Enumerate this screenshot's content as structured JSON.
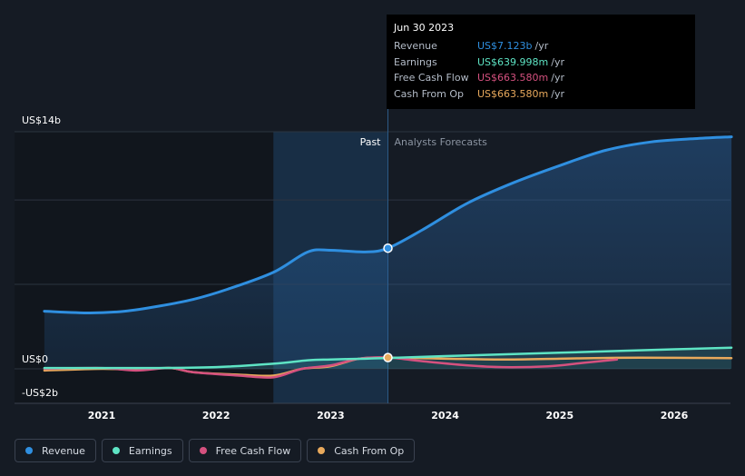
{
  "tooltip": {
    "date": "Jun 30 2023",
    "rows": [
      {
        "label": "Revenue",
        "value": "US$7.123b",
        "unit": "/yr",
        "color": "#2f8fe0"
      },
      {
        "label": "Earnings",
        "value": "US$639.998m",
        "unit": "/yr",
        "color": "#5ee4c4"
      },
      {
        "label": "Free Cash Flow",
        "value": "US$663.580m",
        "unit": "/yr",
        "color": "#d5517f"
      },
      {
        "label": "Cash From Op",
        "value": "US$663.580m",
        "unit": "/yr",
        "color": "#e8a95c"
      }
    ]
  },
  "chart_data": {
    "type": "line",
    "y_tick_labels": [
      "US$14b",
      "US$0",
      "-US$2b"
    ],
    "ylim": [
      -2,
      14
    ],
    "xlim": [
      2020.5,
      2026.5
    ],
    "x_tick_labels": [
      "2021",
      "2022",
      "2023",
      "2024",
      "2025",
      "2026"
    ],
    "past_label": "Past",
    "forecast_label": "Analysts Forecasts",
    "past_shade_start": 2022.5,
    "forecast_start": 2023.5,
    "series": [
      {
        "name": "Revenue",
        "color": "#2f8fe0",
        "x": [
          2020.5,
          2020.9,
          2021.2,
          2021.5,
          2021.8,
          2022.1,
          2022.5,
          2022.8,
          2023.0,
          2023.3,
          2023.5,
          2023.8,
          2024.2,
          2024.6,
          2025.0,
          2025.4,
          2025.8,
          2026.2,
          2026.5
        ],
        "y": [
          3.4,
          3.3,
          3.4,
          3.7,
          4.1,
          4.7,
          5.7,
          6.9,
          7.0,
          6.9,
          7.123,
          8.2,
          9.8,
          11.0,
          12.0,
          12.9,
          13.4,
          13.6,
          13.7
        ]
      },
      {
        "name": "Earnings",
        "color": "#5ee4c4",
        "x": [
          2020.5,
          2021.0,
          2021.5,
          2022.0,
          2022.5,
          2022.8,
          2023.0,
          2023.3,
          2023.5,
          2024.0,
          2024.5,
          2025.0,
          2025.5,
          2026.0,
          2026.5
        ],
        "y": [
          0.05,
          0.05,
          0.05,
          0.1,
          0.3,
          0.5,
          0.55,
          0.6,
          0.64,
          0.75,
          0.85,
          0.95,
          1.05,
          1.15,
          1.25
        ]
      },
      {
        "name": "Free Cash Flow",
        "color": "#d5517f",
        "x": [
          2020.5,
          2021.0,
          2021.3,
          2021.6,
          2021.8,
          2022.2,
          2022.5,
          2022.75,
          2023.0,
          2023.25,
          2023.5,
          2023.8,
          2024.2,
          2024.5,
          2024.9,
          2025.2,
          2025.5
        ],
        "y": [
          0.0,
          0.05,
          -0.1,
          0.05,
          -0.2,
          -0.4,
          -0.5,
          0.0,
          0.2,
          0.6,
          0.664,
          0.45,
          0.2,
          0.1,
          0.15,
          0.35,
          0.55
        ]
      },
      {
        "name": "Cash From Op",
        "color": "#e8a95c",
        "x": [
          2020.5,
          2021.0,
          2021.3,
          2021.6,
          2021.8,
          2022.2,
          2022.5,
          2022.75,
          2023.0,
          2023.25,
          2023.5,
          2024.0,
          2024.5,
          2025.0,
          2025.5,
          2026.0,
          2026.5
        ],
        "y": [
          -0.1,
          0.0,
          -0.05,
          0.05,
          -0.2,
          -0.35,
          -0.4,
          0.0,
          0.15,
          0.6,
          0.664,
          0.6,
          0.55,
          0.6,
          0.65,
          0.65,
          0.63
        ]
      }
    ]
  },
  "legend": [
    {
      "label": "Revenue",
      "color": "#2f8fe0"
    },
    {
      "label": "Earnings",
      "color": "#5ee4c4"
    },
    {
      "label": "Free Cash Flow",
      "color": "#d5517f"
    },
    {
      "label": "Cash From Op",
      "color": "#e8a95c"
    }
  ]
}
